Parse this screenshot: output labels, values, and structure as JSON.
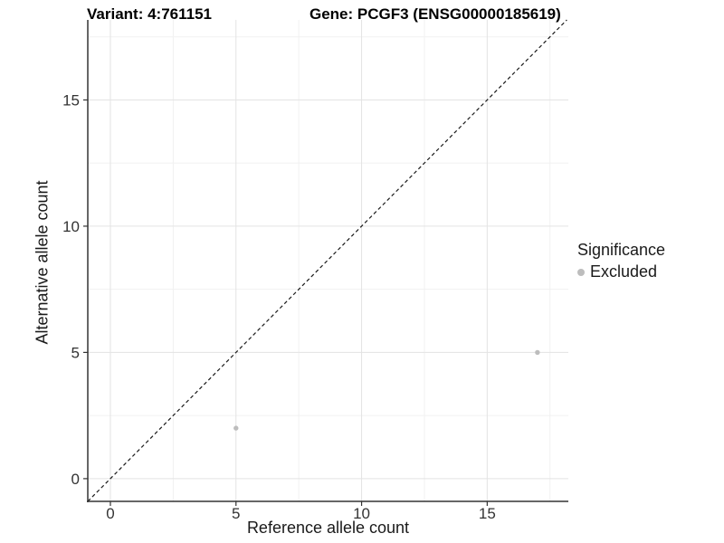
{
  "header": {
    "title_left": "Variant: 4:761151",
    "title_right": "Gene: PCGF3 (ENSG00000185619)"
  },
  "chart_data": {
    "type": "scatter",
    "xlabel": "Reference allele count",
    "ylabel": "Alternative allele count",
    "xlim": [
      -0.9,
      18.23
    ],
    "ylim": [
      -0.9,
      18.17
    ],
    "x_major_ticks": [
      0,
      5,
      10,
      15
    ],
    "y_major_ticks": [
      0,
      5,
      10,
      15
    ],
    "x_minor_ticks": [
      2.5,
      7.5,
      12.5,
      17.5
    ],
    "y_minor_ticks": [
      2.5,
      7.5,
      12.5,
      17.5
    ],
    "grid": true,
    "legend_position": "right",
    "series": [
      {
        "name": "Excluded",
        "color": "#bdbdbd",
        "points": [
          {
            "x": 5,
            "y": 2
          },
          {
            "x": 17,
            "y": 5
          }
        ]
      }
    ],
    "reference_line": {
      "type": "identity",
      "slope": 1,
      "intercept": 0,
      "style": "dashed",
      "color": "#1a1a1a"
    },
    "colors": {
      "grid_major": "#e3e3e3",
      "grid_minor": "#f1f1f1",
      "axis": "#333333",
      "tick_label": "#333333",
      "point": "#bdbdbd"
    }
  },
  "legend": {
    "title": "Significance",
    "items": [
      {
        "label": "Excluded",
        "color": "#bdbdbd"
      }
    ]
  }
}
